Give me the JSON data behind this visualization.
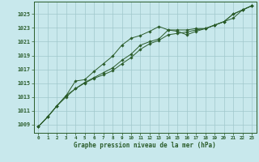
{
  "title": "Graphe pression niveau de la mer (hPa)",
  "bg_color": "#c8e8ec",
  "grid_color": "#a0c8cc",
  "line_color": "#2a5c2a",
  "x_ticks": [
    0,
    1,
    2,
    3,
    4,
    5,
    6,
    7,
    8,
    9,
    10,
    11,
    12,
    13,
    14,
    15,
    16,
    17,
    18,
    19,
    20,
    21,
    22,
    23
  ],
  "y_ticks": [
    1009,
    1011,
    1013,
    1015,
    1017,
    1019,
    1021,
    1023,
    1025
  ],
  "ylim": [
    1007.8,
    1026.8
  ],
  "xlim": [
    -0.5,
    23.5
  ],
  "series1": [
    1008.7,
    1010.1,
    1011.7,
    1013.2,
    1014.2,
    1015.1,
    1015.8,
    1016.5,
    1017.2,
    1018.3,
    1019.2,
    1020.5,
    1021.0,
    1021.4,
    1022.7,
    1022.7,
    1022.7,
    1022.9,
    1022.9,
    1023.4,
    1023.9,
    1025.0,
    1025.6,
    1026.2
  ],
  "series2": [
    1008.7,
    1010.1,
    1011.7,
    1013.2,
    1015.3,
    1015.5,
    1016.7,
    1017.8,
    1018.9,
    1020.5,
    1021.5,
    1021.9,
    1022.5,
    1023.2,
    1022.7,
    1022.5,
    1022.0,
    1022.5,
    1022.9,
    1023.4,
    1023.9,
    1024.4,
    1025.6,
    1026.2
  ],
  "series3": [
    1008.7,
    1010.1,
    1011.7,
    1013.0,
    1014.2,
    1015.0,
    1015.7,
    1016.2,
    1016.8,
    1017.8,
    1018.7,
    1019.9,
    1020.7,
    1021.2,
    1022.0,
    1022.2,
    1022.4,
    1022.7,
    1022.9,
    1023.4,
    1023.9,
    1025.0,
    1025.6,
    1026.2
  ]
}
